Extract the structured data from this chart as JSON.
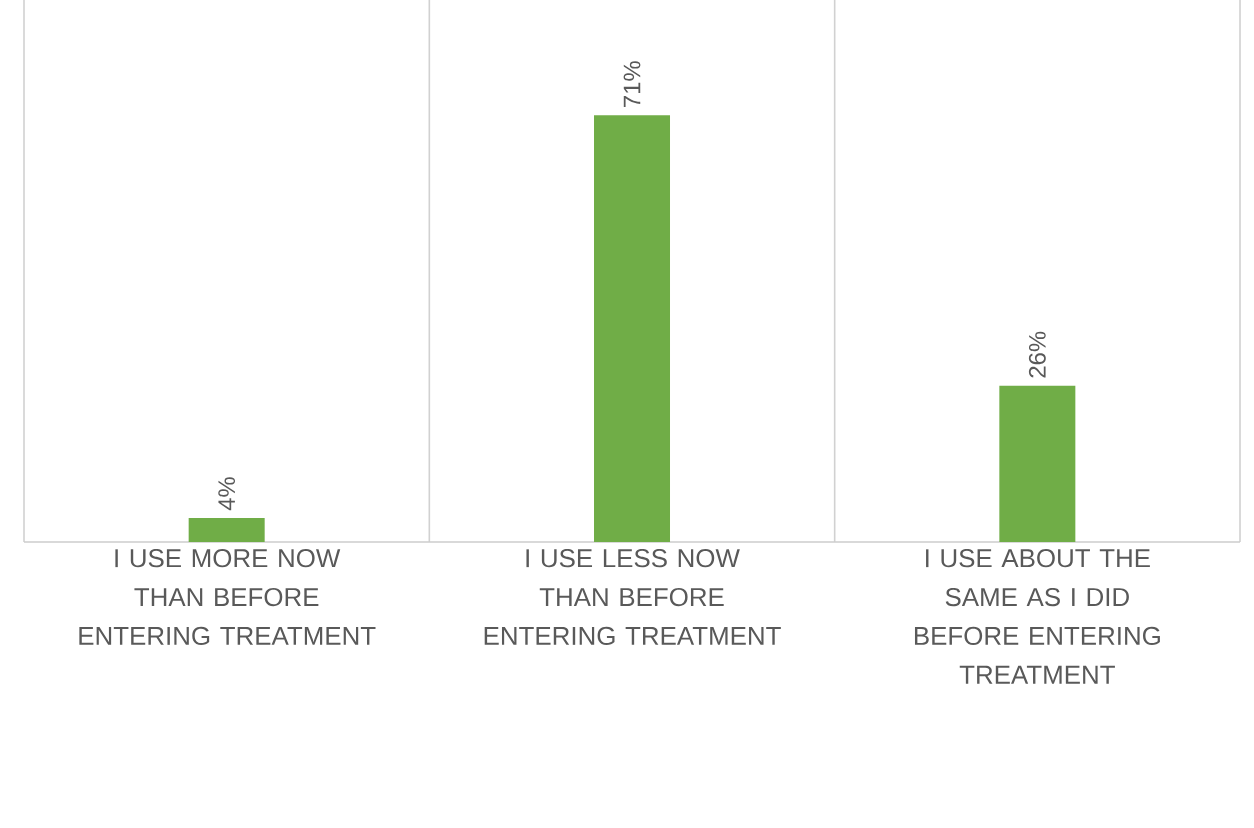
{
  "chart_data": {
    "type": "bar",
    "categories": [
      "I USE MORE NOW THAN BEFORE ENTERING TREATMENT",
      "I USE LESS NOW THAN BEFORE ENTERING TREATMENT",
      "I USE ABOUT THE SAME AS I DID BEFORE ENTERING TREATMENT"
    ],
    "values": [
      4,
      71,
      26
    ],
    "value_labels": [
      "4%",
      "71%",
      "26%"
    ],
    "color": "#70ad47",
    "grid": "x"
  }
}
